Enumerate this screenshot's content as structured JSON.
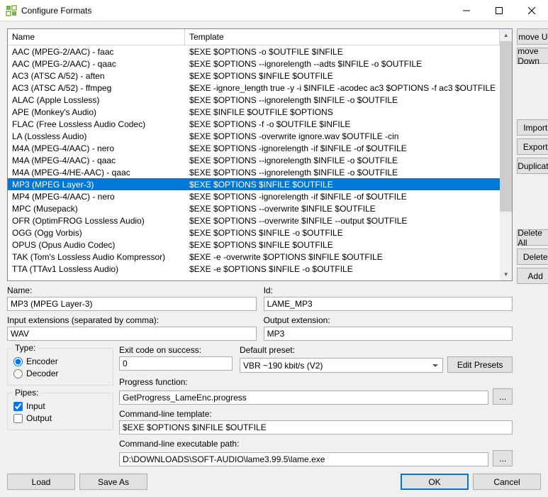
{
  "window": {
    "title": "Configure Formats"
  },
  "columns": {
    "name": "Name",
    "template": "Template"
  },
  "rows": [
    {
      "name": "AAC (MPEG-2/AAC) - faac",
      "tmpl": "$EXE $OPTIONS -o $OUTFILE $INFILE"
    },
    {
      "name": "AAC (MPEG-2/AAC) - qaac",
      "tmpl": "$EXE $OPTIONS --ignorelength --adts $INFILE -o $OUTFILE"
    },
    {
      "name": "AC3 (ATSC A/52) - aften",
      "tmpl": "$EXE $OPTIONS $INFILE $OUTFILE"
    },
    {
      "name": "AC3 (ATSC A/52) - ffmpeg",
      "tmpl": "$EXE -ignore_length true -y -i $INFILE -acodec ac3 $OPTIONS -f ac3 $OUTFILE"
    },
    {
      "name": "ALAC (Apple Lossless)",
      "tmpl": "$EXE $OPTIONS --ignorelength $INFILE -o $OUTFILE"
    },
    {
      "name": "APE (Monkey's Audio)",
      "tmpl": "$EXE $INFILE $OUTFILE $OPTIONS"
    },
    {
      "name": "FLAC (Free Lossless Audio Codec)",
      "tmpl": "$EXE $OPTIONS -f -o $OUTFILE $INFILE"
    },
    {
      "name": "LA (Lossless Audio)",
      "tmpl": "$EXE $OPTIONS -overwrite ignore.wav $OUTFILE -cin"
    },
    {
      "name": "M4A (MPEG-4/AAC) - nero",
      "tmpl": "$EXE $OPTIONS -ignorelength -if $INFILE -of $OUTFILE"
    },
    {
      "name": "M4A (MPEG-4/AAC) - qaac",
      "tmpl": "$EXE $OPTIONS --ignorelength $INFILE -o $OUTFILE"
    },
    {
      "name": "M4A (MPEG-4/HE-AAC) - qaac",
      "tmpl": "$EXE $OPTIONS --ignorelength $INFILE -o $OUTFILE"
    },
    {
      "name": "MP3 (MPEG Layer-3)",
      "tmpl": "$EXE $OPTIONS $INFILE $OUTFILE",
      "selected": true
    },
    {
      "name": "MP4 (MPEG-4/AAC) - nero",
      "tmpl": "$EXE $OPTIONS -ignorelength -if $INFILE -of $OUTFILE"
    },
    {
      "name": "MPC (Musepack)",
      "tmpl": "$EXE $OPTIONS --overwrite $INFILE $OUTFILE"
    },
    {
      "name": "OFR (OptimFROG Lossless Audio)",
      "tmpl": "$EXE $OPTIONS --overwrite $INFILE --output $OUTFILE"
    },
    {
      "name": "OGG (Ogg Vorbis)",
      "tmpl": "$EXE $OPTIONS $INFILE -o $OUTFILE"
    },
    {
      "name": "OPUS (Opus Audio Codec)",
      "tmpl": "$EXE $OPTIONS $INFILE $OUTFILE"
    },
    {
      "name": "TAK (Tom's Lossless Audio Kompressor)",
      "tmpl": "$EXE -e -overwrite $OPTIONS $INFILE $OUTFILE"
    },
    {
      "name": "TTA (TTAv1 Lossless Audio)",
      "tmpl": "$EXE -e $OPTIONS $INFILE -o $OUTFILE"
    }
  ],
  "buttons": {
    "moveUp": "move Up",
    "moveDown": "move Down",
    "import": "Import",
    "export": "Export",
    "duplicate": "Duplicate",
    "deleteAll": "Delete All",
    "delete": "Delete",
    "add": "Add",
    "editPresets": "Edit Presets",
    "load": "Load",
    "saveAs": "Save As",
    "ok": "OK",
    "cancel": "Cancel",
    "more": "..."
  },
  "labels": {
    "name": "Name:",
    "id": "Id:",
    "inputExt": "Input extensions (separated by comma):",
    "outputExt": "Output extension:",
    "type": "Type:",
    "encoder": "Encoder",
    "decoder": "Decoder",
    "exitCode": "Exit code on success:",
    "defaultPreset": "Default preset:",
    "progressFunc": "Progress function:",
    "pipes": "Pipes:",
    "input": "Input",
    "output": "Output",
    "cmdTemplate": "Command-line template:",
    "cmdExec": "Command-line executable path:"
  },
  "values": {
    "name": "MP3 (MPEG Layer-3)",
    "id": "LAME_MP3",
    "inputExt": "WAV",
    "outputExt": "MP3",
    "exitCode": "0",
    "defaultPreset": "VBR ~190 kbit/s (V2)",
    "progressFunc": "GetProgress_LameEnc.progress",
    "cmdTemplate": "$EXE $OPTIONS $INFILE $OUTFILE",
    "cmdExec": "D:\\DOWNLOADS\\SOFT-AUDIO\\lame3.99.5\\lame.exe",
    "encoder": true,
    "decoder": false,
    "pipeInput": true,
    "pipeOutput": false
  }
}
